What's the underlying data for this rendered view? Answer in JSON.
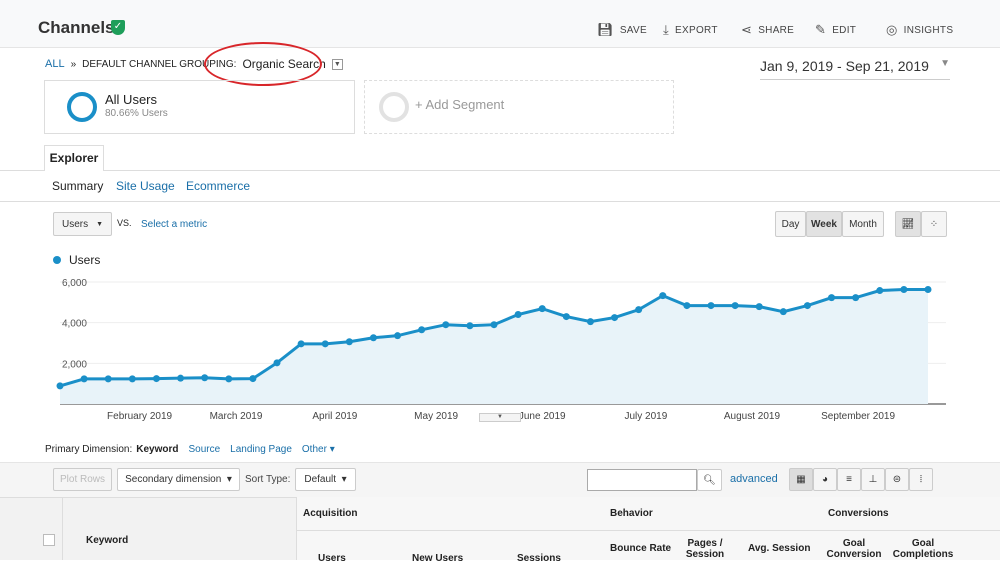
{
  "header": {
    "title": "Channels",
    "save": "SAVE",
    "export": "EXPORT",
    "share": "SHARE",
    "edit": "EDIT",
    "insights": "INSIGHTS",
    "insights_badge": "4"
  },
  "breadcrumb": {
    "all": "ALL",
    "sep": "»",
    "grouping": "DEFAULT CHANNEL GROUPING:",
    "value": "Organic Search"
  },
  "date_range": "Jan 9, 2019 - Sep 21, 2019",
  "segments": [
    {
      "name": "All Users",
      "detail": "80.66% Users"
    },
    {
      "name": "+ Add Segment"
    }
  ],
  "tabs": {
    "explorer": "Explorer",
    "sub": [
      "Summary",
      "Site Usage",
      "Ecommerce"
    ]
  },
  "controls": {
    "metric": "Users",
    "vs": "VS.",
    "select_metric": "Select a metric",
    "periods": [
      "Day",
      "Week",
      "Month"
    ],
    "active_period": "Week"
  },
  "chart_data": {
    "type": "area",
    "legend": "Users",
    "series": [
      {
        "name": "Users",
        "values": [
          890,
          1235,
          1235,
          1235,
          1250,
          1270,
          1290,
          1235,
          1250,
          2025,
          2960,
          2960,
          3060,
          3260,
          3360,
          3650,
          3900,
          3850,
          3900,
          4400,
          4690,
          4300,
          4050,
          4250,
          4640,
          5330,
          4840,
          4840,
          4840,
          4790,
          4540,
          4840,
          5230,
          5230,
          5580,
          5630,
          5630
        ]
      }
    ],
    "x_start": "Jan 9, 2019",
    "x_interval": "week",
    "y_ticks": [
      "2,000",
      "4,000",
      "6,000"
    ],
    "ylim": [
      0,
      6000
    ],
    "x_labels": [
      "February 2019",
      "March 2019",
      "April 2019",
      "May 2019",
      "June 2019",
      "July 2019",
      "August 2019",
      "September 2019"
    ],
    "color": "#1a8fc8",
    "grid": true
  },
  "dimension": {
    "label": "Primary Dimension:",
    "active": "Keyword",
    "options": [
      "Source",
      "Landing Page",
      "Other"
    ]
  },
  "table_controls": {
    "plot_rows": "Plot Rows",
    "secondary": "Secondary dimension",
    "sort_label": "Sort Type:",
    "sort_value": "Default",
    "advanced": "advanced",
    "search_value": ""
  },
  "table": {
    "keyword": "Keyword",
    "groups": [
      "Acquisition",
      "Behavior",
      "Conversions"
    ],
    "columns": [
      "Users",
      "New Users",
      "Sessions",
      "Bounce Rate",
      "Pages / Session",
      "Avg. Session",
      "Goal Conversion",
      "Goal Completions"
    ]
  }
}
